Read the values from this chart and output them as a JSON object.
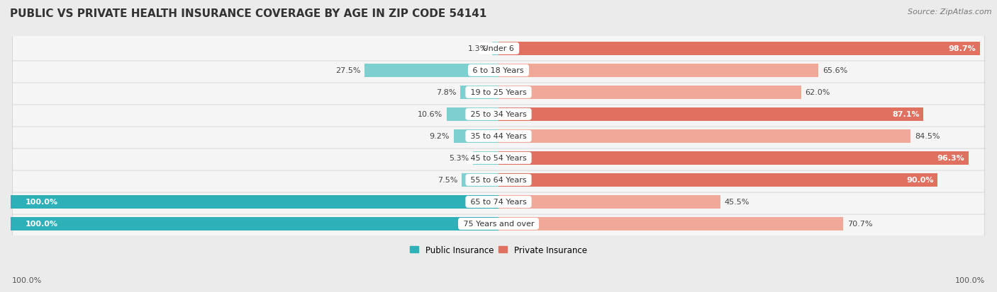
{
  "title": "PUBLIC VS PRIVATE HEALTH INSURANCE COVERAGE BY AGE IN ZIP CODE 54141",
  "source": "Source: ZipAtlas.com",
  "categories": [
    "Under 6",
    "6 to 18 Years",
    "19 to 25 Years",
    "25 to 34 Years",
    "35 to 44 Years",
    "45 to 54 Years",
    "55 to 64 Years",
    "65 to 74 Years",
    "75 Years and over"
  ],
  "public_values": [
    1.3,
    27.5,
    7.8,
    10.6,
    9.2,
    5.3,
    7.5,
    100.0,
    100.0
  ],
  "private_values": [
    98.7,
    65.6,
    62.0,
    87.1,
    84.5,
    96.3,
    90.0,
    45.5,
    70.7
  ],
  "public_color_full": "#2db0b8",
  "public_color_partial": "#7ecfcf",
  "private_color_full": "#e07060",
  "private_color_partial": "#f0a898",
  "bg_color": "#ebebeb",
  "row_bg_color": "#f5f5f5",
  "x_left_label": "100.0%",
  "x_right_label": "100.0%",
  "legend_public": "Public Insurance",
  "legend_private": "Private Insurance",
  "title_fontsize": 11,
  "source_fontsize": 8,
  "bar_label_fontsize": 8,
  "cat_label_fontsize": 8
}
